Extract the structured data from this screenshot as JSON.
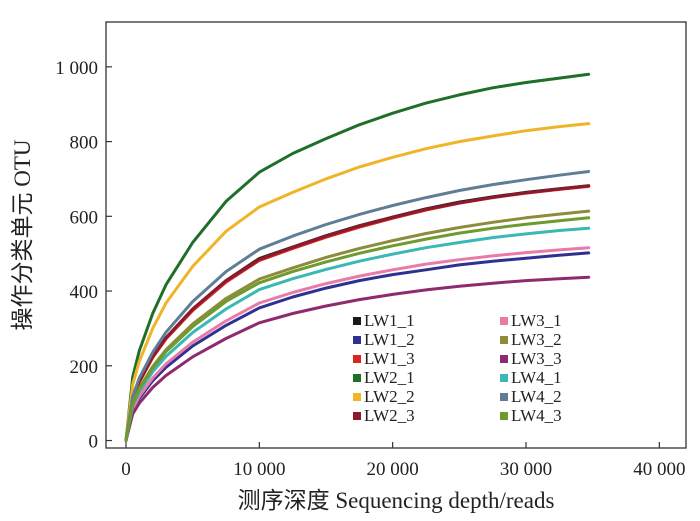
{
  "chart_data": {
    "type": "line",
    "xlabel": "测序深度 Sequencing depth/reads",
    "ylabel": "操作分类单元 OTU",
    "xlim": [
      -1500,
      42000
    ],
    "ylim": [
      -20,
      1120
    ],
    "x_ticks": [
      0,
      10000,
      20000,
      30000,
      40000
    ],
    "x_tick_labels": [
      "0",
      "10 000",
      "20 000",
      "30 000",
      "40 000"
    ],
    "y_ticks": [
      0,
      200,
      400,
      600,
      800,
      1000
    ],
    "y_tick_labels": [
      "0",
      "200",
      "400",
      "600",
      "800",
      "1 000"
    ],
    "grid": false,
    "legend_position": "bottom-right",
    "x": [
      0,
      500,
      1000,
      2000,
      3000,
      5000,
      7500,
      10000,
      12500,
      15000,
      17500,
      20000,
      22500,
      25000,
      27500,
      30000,
      32500,
      34700
    ],
    "series": [
      {
        "name": "LW1_1",
        "color": "#1a1a1a",
        "values": [
          0,
          112,
          158,
          225,
          275,
          352,
          428,
          487,
          518,
          548,
          575,
          598,
          620,
          638,
          652,
          664,
          674,
          682
        ]
      },
      {
        "name": "LW1_2",
        "color": "#2e3192",
        "values": [
          0,
          80,
          113,
          160,
          196,
          253,
          308,
          355,
          384,
          408,
          428,
          444,
          457,
          470,
          480,
          488,
          496,
          502
        ]
      },
      {
        "name": "LW1_3",
        "color": "#d7261e",
        "values": [
          0,
          111,
          156,
          222,
          272,
          348,
          424,
          482,
          514,
          544,
          571,
          595,
          617,
          635,
          650,
          662,
          672,
          680
        ]
      },
      {
        "name": "LW2_1",
        "color": "#1f6f2a",
        "values": [
          0,
          170,
          240,
          340,
          417,
          530,
          640,
          718,
          768,
          808,
          845,
          876,
          903,
          925,
          944,
          958,
          970,
          980
        ]
      },
      {
        "name": "LW2_2",
        "color": "#f0b428",
        "values": [
          0,
          150,
          212,
          300,
          368,
          466,
          560,
          625,
          664,
          700,
          732,
          758,
          781,
          800,
          815,
          829,
          840,
          848
        ]
      },
      {
        "name": "LW2_3",
        "color": "#8b1a2e",
        "values": [
          0,
          112,
          158,
          225,
          275,
          352,
          428,
          485,
          517,
          547,
          574,
          597,
          619,
          636,
          651,
          663,
          673,
          682
        ]
      },
      {
        "name": "LW3_1",
        "color": "#e87ba8",
        "values": [
          0,
          84,
          118,
          167,
          205,
          263,
          320,
          368,
          396,
          420,
          440,
          457,
          472,
          484,
          494,
          503,
          510,
          516
        ]
      },
      {
        "name": "LW3_2",
        "color": "#8c8c3c",
        "values": [
          0,
          99,
          140,
          198,
          243,
          312,
          380,
          432,
          462,
          490,
          514,
          535,
          554,
          570,
          584,
          596,
          606,
          614
        ]
      },
      {
        "name": "LW3_3",
        "color": "#8e2a6e",
        "values": [
          0,
          71,
          100,
          142,
          174,
          224,
          273,
          315,
          340,
          360,
          377,
          391,
          403,
          413,
          421,
          428,
          433,
          437
        ]
      },
      {
        "name": "LW4_1",
        "color": "#3bb8b4",
        "values": [
          0,
          92,
          130,
          184,
          225,
          289,
          352,
          404,
          433,
          458,
          480,
          499,
          516,
          530,
          543,
          553,
          562,
          568
        ]
      },
      {
        "name": "LW4_2",
        "color": "#5f7e96",
        "values": [
          0,
          118,
          167,
          236,
          290,
          372,
          452,
          512,
          547,
          578,
          605,
          629,
          650,
          669,
          685,
          698,
          710,
          720
        ]
      },
      {
        "name": "LW4_3",
        "color": "#6f9a2e",
        "values": [
          0,
          97,
          137,
          194,
          238,
          305,
          372,
          422,
          452,
          478,
          501,
          521,
          539,
          555,
          568,
          579,
          588,
          596
        ]
      }
    ]
  }
}
